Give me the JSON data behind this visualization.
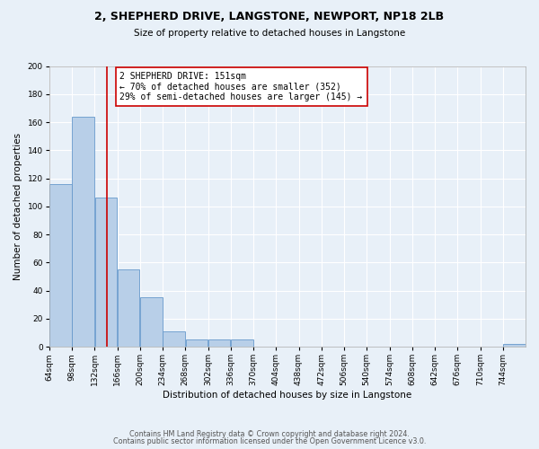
{
  "title": "2, SHEPHERD DRIVE, LANGSTONE, NEWPORT, NP18 2LB",
  "subtitle": "Size of property relative to detached houses in Langstone",
  "xlabel": "Distribution of detached houses by size in Langstone",
  "ylabel": "Number of detached properties",
  "bin_edges": [
    64,
    98,
    132,
    166,
    200,
    234,
    268,
    302,
    336,
    370,
    404,
    438,
    472,
    506,
    540,
    574,
    608,
    642,
    676,
    710,
    744
  ],
  "bin_labels": [
    "64sqm",
    "98sqm",
    "132sqm",
    "166sqm",
    "200sqm",
    "234sqm",
    "268sqm",
    "302sqm",
    "336sqm",
    "370sqm",
    "404sqm",
    "438sqm",
    "472sqm",
    "506sqm",
    "540sqm",
    "574sqm",
    "608sqm",
    "642sqm",
    "676sqm",
    "710sqm",
    "744sqm"
  ],
  "counts": [
    116,
    164,
    106,
    55,
    35,
    11,
    5,
    5,
    5,
    0,
    0,
    0,
    0,
    0,
    0,
    0,
    0,
    0,
    0,
    0,
    2
  ],
  "bar_color": "#b8cfe8",
  "bar_edge_color": "#6699cc",
  "vline_x": 151,
  "vline_color": "#cc0000",
  "annotation_text": "2 SHEPHERD DRIVE: 151sqm\n← 70% of detached houses are smaller (352)\n29% of semi-detached houses are larger (145) →",
  "annotation_box_color": "#ffffff",
  "annotation_box_edge_color": "#cc0000",
  "ylim": [
    0,
    200
  ],
  "yticks": [
    0,
    20,
    40,
    60,
    80,
    100,
    120,
    140,
    160,
    180,
    200
  ],
  "xlim": [
    64,
    778
  ],
  "background_color": "#e8f0f8",
  "footer_line1": "Contains HM Land Registry data © Crown copyright and database right 2024.",
  "footer_line2": "Contains public sector information licensed under the Open Government Licence v3.0.",
  "title_fontsize": 9,
  "subtitle_fontsize": 7.5,
  "axis_label_fontsize": 7.5,
  "tick_fontsize": 6.5,
  "annotation_fontsize": 7,
  "footer_fontsize": 5.8
}
